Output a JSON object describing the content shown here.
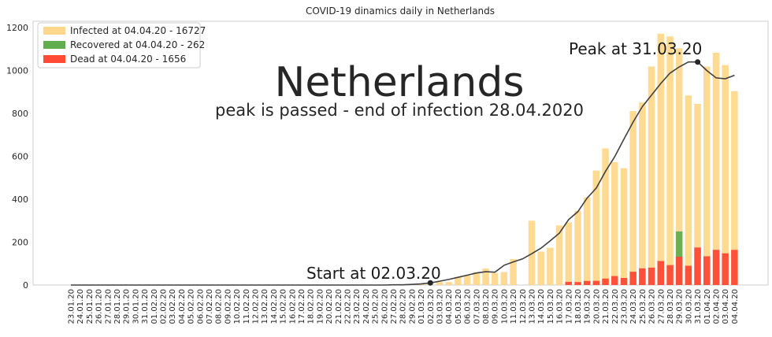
{
  "chart_data": {
    "type": "bar",
    "title": "COVID-19 dinamics daily in Netherlands",
    "xlabel": "",
    "ylabel": "",
    "ylim": [
      0,
      1230
    ],
    "yticks": [
      0,
      200,
      400,
      600,
      800,
      1000,
      1200
    ],
    "grid": false,
    "legend_position": "top-left",
    "categories": [
      "23.01.20",
      "24.01.20",
      "25.01.20",
      "26.01.20",
      "27.01.20",
      "28.01.20",
      "29.01.20",
      "30.01.20",
      "31.01.20",
      "01.02.20",
      "02.02.20",
      "03.02.20",
      "04.02.20",
      "05.02.20",
      "06.02.20",
      "07.02.20",
      "08.02.20",
      "09.02.20",
      "10.02.20",
      "11.02.20",
      "12.02.20",
      "13.02.20",
      "14.02.20",
      "15.02.20",
      "16.02.20",
      "17.02.20",
      "18.02.20",
      "19.02.20",
      "20.02.20",
      "21.02.20",
      "22.02.20",
      "23.02.20",
      "24.02.20",
      "25.02.20",
      "26.02.20",
      "27.02.20",
      "28.02.20",
      "29.02.20",
      "01.03.20",
      "02.03.20",
      "03.03.20",
      "04.03.20",
      "05.03.20",
      "06.03.20",
      "07.03.20",
      "08.03.20",
      "09.03.20",
      "10.03.20",
      "11.03.20",
      "12.03.20",
      "13.03.20",
      "14.03.20",
      "15.03.20",
      "16.03.20",
      "17.03.20",
      "18.03.20",
      "19.03.20",
      "20.03.20",
      "21.03.20",
      "22.03.20",
      "23.03.20",
      "24.03.20",
      "25.03.20",
      "26.03.20",
      "27.03.20",
      "28.03.20",
      "29.03.20",
      "30.03.20",
      "31.03.20",
      "01.04.20",
      "02.04.20",
      "03.04.20",
      "04.04.20"
    ],
    "series": [
      {
        "name": "Infected at 04.04.20 - 16727",
        "color": "#ffd37f",
        "values": [
          0,
          0,
          0,
          0,
          0,
          0,
          0,
          0,
          0,
          0,
          0,
          0,
          0,
          0,
          0,
          0,
          0,
          0,
          0,
          0,
          0,
          0,
          0,
          0,
          0,
          0,
          0,
          0,
          0,
          0,
          0,
          0,
          0,
          0,
          1,
          0,
          1,
          5,
          4,
          5,
          14,
          14,
          38,
          44,
          60,
          77,
          56,
          61,
          121,
          0,
          300,
          156,
          174,
          278,
          292,
          346,
          409,
          534,
          637,
          573,
          545,
          811,
          852,
          1019,
          1172,
          1159,
          1104,
          884,
          845,
          1019,
          1083,
          1026,
          904
        ]
      },
      {
        "name": "Recovered at 04.04.20 - 262",
        "color": "#62ad4d",
        "values": [
          0,
          0,
          0,
          0,
          0,
          0,
          0,
          0,
          0,
          0,
          0,
          0,
          0,
          0,
          0,
          0,
          0,
          0,
          0,
          0,
          0,
          0,
          0,
          0,
          0,
          0,
          0,
          0,
          0,
          0,
          0,
          0,
          0,
          0,
          0,
          0,
          0,
          0,
          0,
          0,
          0,
          0,
          0,
          0,
          0,
          0,
          0,
          0,
          0,
          0,
          0,
          0,
          0,
          0,
          0,
          0,
          0,
          0,
          0,
          0,
          0,
          0,
          0,
          0,
          0,
          0,
          250,
          0,
          0,
          0,
          0,
          0,
          0
        ]
      },
      {
        "name": "Dead at 04.04.20 - 1656",
        "color": "#ff4a36",
        "values": [
          0,
          0,
          0,
          0,
          0,
          0,
          0,
          0,
          0,
          0,
          0,
          0,
          0,
          0,
          0,
          0,
          0,
          0,
          0,
          0,
          0,
          0,
          0,
          0,
          0,
          0,
          0,
          0,
          0,
          0,
          0,
          0,
          0,
          0,
          0,
          0,
          0,
          0,
          0,
          0,
          0,
          0,
          0,
          0,
          0,
          0,
          0,
          0,
          0,
          0,
          0,
          0,
          0,
          0,
          15,
          14,
          19,
          20,
          30,
          42,
          33,
          62,
          78,
          81,
          112,
          93,
          132,
          90,
          175,
          134,
          164,
          148,
          164
        ]
      },
      {
        "name": "",
        "type": "line",
        "color": "#404040",
        "values": [
          0,
          0,
          0,
          0,
          0,
          0,
          0,
          0,
          0,
          0,
          0,
          0,
          0,
          0,
          0,
          0,
          0,
          0,
          0,
          0,
          0,
          0,
          0,
          0,
          0,
          0,
          0,
          0,
          0,
          0,
          0,
          0,
          0,
          0,
          0,
          1,
          1,
          3,
          5,
          10,
          18,
          26,
          36,
          46,
          56,
          62,
          60,
          92,
          108,
          122,
          146,
          172,
          206,
          242,
          305,
          342,
          405,
          452,
          530,
          598,
          680,
          760,
          832,
          886,
          940,
          988,
          1017,
          1040,
          1040,
          1000,
          966,
          962,
          978
        ]
      }
    ],
    "annotations": {
      "title_big": "Netherlands",
      "subtitle": "peak is passed - end of infection 28.04.2020",
      "start_label": "Start at 02.03.20",
      "start_index": 39,
      "peak_label": "Peak at 31.03.20",
      "peak_index": 68
    }
  }
}
